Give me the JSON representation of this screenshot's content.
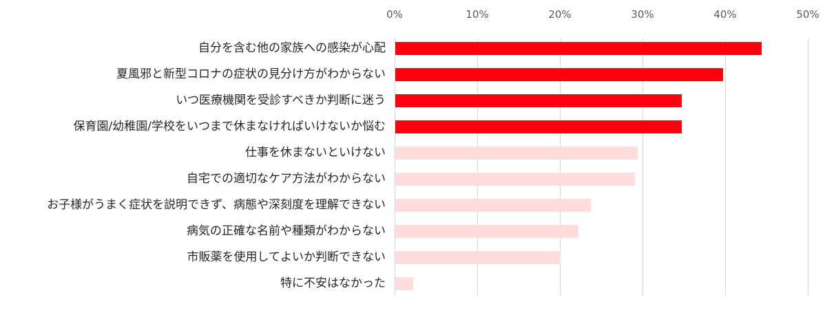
{
  "chart_data": {
    "type": "bar",
    "orientation": "horizontal",
    "title": "",
    "xlabel": "",
    "ylabel": "",
    "xlim": [
      0,
      50
    ],
    "x_ticks": [
      "0%",
      "10%",
      "20%",
      "30%",
      "40%",
      "50%"
    ],
    "grid": true,
    "legend": null,
    "categories": [
      "自分を含む他の家族への感染が心配",
      "夏風邪と新型コロナの症状の見分け方がわからない",
      "いつ医療機関を受診すべきか判断に迷う",
      "保育園/幼稚園/学校をいつまで休まなければいけないか悩む",
      "仕事を休まないといけない",
      "自宅での適切なケア方法がわからない",
      "お子様がうまく症状を説明できず、病態や深刻度を理解できない",
      "病気の正確な名前や種類がわからない",
      "市販薬を使用してよいか判断できない",
      "特に不安はなかった"
    ],
    "values": [
      44.3,
      39.7,
      34.7,
      34.7,
      29.3,
      29.0,
      23.7,
      22.2,
      20.0,
      2.2
    ],
    "highlight": [
      true,
      true,
      true,
      true,
      false,
      false,
      false,
      false,
      false,
      false
    ],
    "colors": {
      "highlight": "#FF0010",
      "normal": "#FFDDDD",
      "grid": "#D9D9D9",
      "tick_text": "#595959",
      "label_text": "#262626"
    }
  }
}
